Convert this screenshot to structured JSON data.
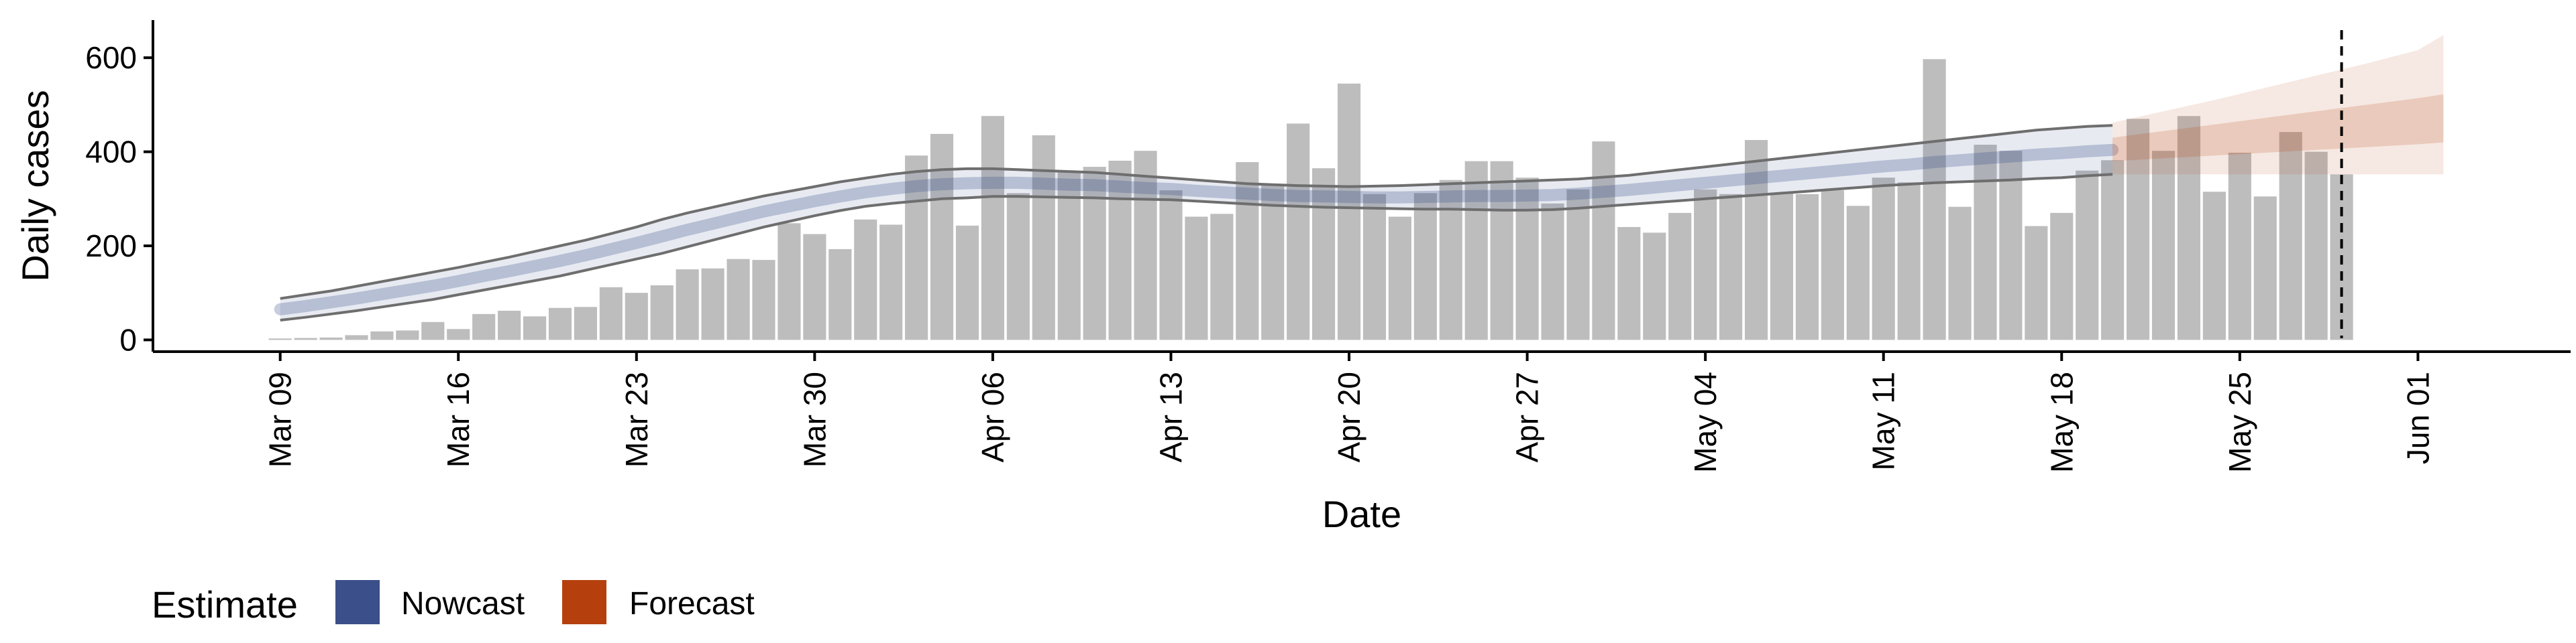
{
  "chart_data": {
    "type": "bar",
    "xlabel": "Date",
    "ylabel": "Daily cases",
    "ylim": [
      -25,
      680
    ],
    "yticks": [
      0,
      200,
      400,
      600
    ],
    "x_dates": [
      "2020-03-09",
      "2020-03-10",
      "2020-03-11",
      "2020-03-12",
      "2020-03-13",
      "2020-03-14",
      "2020-03-15",
      "2020-03-16",
      "2020-03-17",
      "2020-03-18",
      "2020-03-19",
      "2020-03-20",
      "2020-03-21",
      "2020-03-22",
      "2020-03-23",
      "2020-03-24",
      "2020-03-25",
      "2020-03-26",
      "2020-03-27",
      "2020-03-28",
      "2020-03-29",
      "2020-03-30",
      "2020-03-31",
      "2020-04-01",
      "2020-04-02",
      "2020-04-03",
      "2020-04-04",
      "2020-04-05",
      "2020-04-06",
      "2020-04-07",
      "2020-04-08",
      "2020-04-09",
      "2020-04-10",
      "2020-04-11",
      "2020-04-12",
      "2020-04-13",
      "2020-04-14",
      "2020-04-15",
      "2020-04-16",
      "2020-04-17",
      "2020-04-18",
      "2020-04-19",
      "2020-04-20",
      "2020-04-21",
      "2020-04-22",
      "2020-04-23",
      "2020-04-24",
      "2020-04-25",
      "2020-04-26",
      "2020-04-27",
      "2020-04-28",
      "2020-04-29",
      "2020-04-30",
      "2020-05-01",
      "2020-05-02",
      "2020-05-03",
      "2020-05-04",
      "2020-05-05",
      "2020-05-06",
      "2020-05-07",
      "2020-05-08",
      "2020-05-09",
      "2020-05-10",
      "2020-05-11",
      "2020-05-12",
      "2020-05-13",
      "2020-05-14",
      "2020-05-15",
      "2020-05-16",
      "2020-05-17",
      "2020-05-18",
      "2020-05-19",
      "2020-05-20",
      "2020-05-21",
      "2020-05-22",
      "2020-05-23",
      "2020-05-24",
      "2020-05-25",
      "2020-05-26",
      "2020-05-27",
      "2020-05-28",
      "2020-05-29"
    ],
    "xticks": [
      {
        "date": "2020-03-09",
        "label": "Mar 09"
      },
      {
        "date": "2020-03-16",
        "label": "Mar 16"
      },
      {
        "date": "2020-03-23",
        "label": "Mar 23"
      },
      {
        "date": "2020-03-30",
        "label": "Mar 30"
      },
      {
        "date": "2020-04-06",
        "label": "Apr 06"
      },
      {
        "date": "2020-04-13",
        "label": "Apr 13"
      },
      {
        "date": "2020-04-20",
        "label": "Apr 20"
      },
      {
        "date": "2020-04-27",
        "label": "Apr 27"
      },
      {
        "date": "2020-05-04",
        "label": "May 04"
      },
      {
        "date": "2020-05-11",
        "label": "May 11"
      },
      {
        "date": "2020-05-18",
        "label": "May 18"
      },
      {
        "date": "2020-05-25",
        "label": "May 25"
      },
      {
        "date": "2020-06-01",
        "label": "Jun 01"
      }
    ],
    "xlim": [
      "2020-03-04",
      "2020-06-07"
    ],
    "daily_cases": [
      3,
      4,
      5,
      10,
      18,
      20,
      38,
      23,
      55,
      62,
      50,
      68,
      70,
      112,
      100,
      116,
      150,
      152,
      172,
      170,
      248,
      225,
      193,
      256,
      245,
      392,
      438,
      243,
      476,
      312,
      435,
      358,
      368,
      381,
      402,
      318,
      262,
      268,
      378,
      330,
      460,
      365,
      545,
      310,
      262,
      312,
      340,
      380,
      380,
      345,
      290,
      320,
      422,
      240,
      228,
      270,
      320,
      310,
      425,
      312,
      310,
      318,
      285,
      345,
      335,
      597,
      283,
      415,
      402,
      242,
      270,
      360,
      382,
      470,
      402,
      476,
      315,
      398,
      305,
      442,
      400,
      352
    ],
    "series": [
      {
        "name": "Nowcast",
        "color": "#3b4f8a",
        "start_date": "2020-03-09",
        "lower_outer": [
          42,
          48,
          55,
          62,
          70,
          78,
          86,
          96,
          106,
          116,
          126,
          136,
          148,
          160,
          172,
          184,
          198,
          212,
          226,
          240,
          252,
          264,
          275,
          284,
          290,
          295,
          300,
          302,
          305,
          305,
          304,
          303,
          302,
          300,
          299,
          298,
          295,
          292,
          289,
          286,
          284,
          282,
          281,
          280,
          279,
          278,
          278,
          277,
          276,
          276,
          277,
          280,
          284,
          288,
          292,
          296,
          300,
          304,
          308,
          312,
          316,
          320,
          324,
          328,
          331,
          334,
          336,
          338,
          340,
          343,
          345,
          349,
          352
        ],
        "upper_outer": [
          88,
          96,
          104,
          114,
          124,
          134,
          144,
          154,
          165,
          176,
          188,
          200,
          212,
          226,
          240,
          256,
          270,
          282,
          294,
          306,
          316,
          326,
          336,
          344,
          352,
          358,
          362,
          364,
          364,
          362,
          360,
          358,
          356,
          352,
          348,
          344,
          340,
          336,
          332,
          330,
          328,
          327,
          326,
          327,
          328,
          330,
          332,
          334,
          336,
          338,
          340,
          342,
          346,
          350,
          356,
          362,
          368,
          374,
          380,
          386,
          392,
          398,
          404,
          410,
          416,
          422,
          428,
          434,
          440,
          446,
          450,
          454,
          456
        ],
        "median": [
          65,
          72,
          80,
          88,
          97,
          106,
          115,
          125,
          136,
          146,
          157,
          168,
          180,
          193,
          206,
          220,
          234,
          247,
          260,
          273,
          284,
          295,
          305,
          314,
          321,
          327,
          331,
          333,
          334,
          334,
          332,
          330,
          329,
          326,
          323,
          321,
          317,
          314,
          311,
          308,
          306,
          305,
          304,
          303,
          303,
          304,
          305,
          306,
          306,
          307,
          308,
          311,
          315,
          319,
          324,
          329,
          334,
          339,
          344,
          349,
          354,
          359,
          364,
          369,
          373,
          378,
          382,
          386,
          390,
          394,
          397,
          401,
          404
        ]
      },
      {
        "name": "Forecast",
        "color": "#b5400e",
        "start_date": "2020-05-20",
        "lower_outer": [
          352,
          352,
          352,
          352,
          352,
          352,
          352,
          352,
          352,
          352,
          352,
          352,
          352,
          352
        ],
        "upper_outer": [
          462,
          474,
          486,
          498,
          510,
          523,
          536,
          549,
          562,
          575,
          588,
          602,
          616,
          648
        ],
        "lower_inner": [
          380,
          383,
          386,
          389,
          392,
          395,
          398,
          401,
          404,
          407,
          410,
          413,
          416,
          420
        ],
        "upper_inner": [
          430,
          437,
          444,
          451,
          458,
          465,
          472,
          479,
          486,
          493,
          500,
          507,
          514,
          522
        ]
      }
    ],
    "forecast_date": "2020-05-29",
    "legend": {
      "title": "Estimate",
      "position": "bottom-left"
    },
    "grid": false
  }
}
